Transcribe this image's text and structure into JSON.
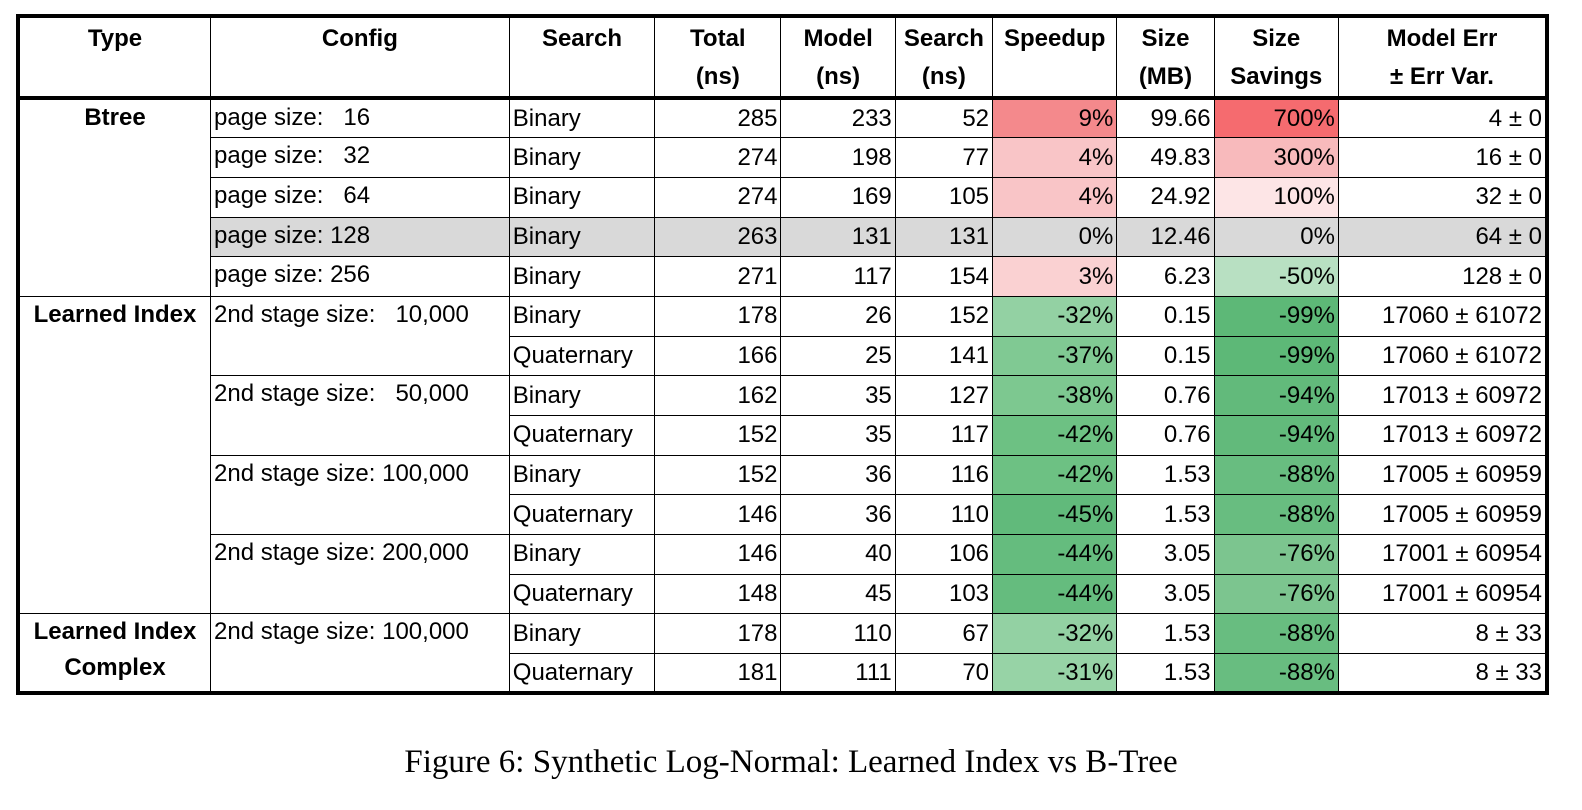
{
  "headers": {
    "type": [
      "Type"
    ],
    "config": [
      "Config"
    ],
    "search": [
      "Search"
    ],
    "total": [
      "Total",
      "(ns)"
    ],
    "model": [
      "Model",
      "(ns)"
    ],
    "search_ns": [
      "Search",
      "(ns)"
    ],
    "speedup": [
      "Speedup"
    ],
    "size": [
      "Size",
      "(MB)"
    ],
    "savings": [
      "Size",
      "Savings"
    ],
    "model_err": [
      "Model Err",
      "± Err Var."
    ]
  },
  "groups": [
    {
      "type": [
        "Btree"
      ],
      "configs": [
        {
          "label": "page size:   16",
          "rows": [
            {
              "search": "Binary",
              "total": "285",
              "model": "233",
              "search_ns": "52",
              "speedup": "9%",
              "speedup_color": "#f4898c",
              "size": "99.66",
              "savings": "700%",
              "savings_color": "#f56b6f",
              "err": "4 ± 0"
            }
          ]
        },
        {
          "label": "page size:   32",
          "rows": [
            {
              "search": "Binary",
              "total": "274",
              "model": "198",
              "search_ns": "77",
              "speedup": "4%",
              "speedup_color": "#f9c5c7",
              "size": "49.83",
              "savings": "300%",
              "savings_color": "#f8babc",
              "err": "16 ± 0"
            }
          ]
        },
        {
          "label": "page size:   64",
          "rows": [
            {
              "search": "Binary",
              "total": "274",
              "model": "169",
              "search_ns": "105",
              "speedup": "4%",
              "speedup_color": "#f9c5c7",
              "size": "24.92",
              "savings": "100%",
              "savings_color": "#fde5e6",
              "err": "32 ± 0"
            }
          ]
        },
        {
          "label": "page size: 128",
          "highlight": true,
          "rows": [
            {
              "search": "Binary",
              "total": "263",
              "model": "131",
              "search_ns": "131",
              "speedup": "0%",
              "speedup_color": "#d9d9d9",
              "size": "12.46",
              "savings": "0%",
              "savings_color": "#d9d9d9",
              "err": "64 ± 0"
            }
          ]
        },
        {
          "label": "page size: 256",
          "rows": [
            {
              "search": "Binary",
              "total": "271",
              "model": "117",
              "search_ns": "154",
              "speedup": "3%",
              "speedup_color": "#fad1d2",
              "size": "6.23",
              "savings": "-50%",
              "savings_color": "#b8e0c2",
              "err": "128 ± 0"
            }
          ]
        }
      ]
    },
    {
      "type": [
        "Learned Index"
      ],
      "configs": [
        {
          "label": "2nd stage size:   10,000",
          "rows": [
            {
              "search": "Binary",
              "total": "178",
              "model": "26",
              "search_ns": "152",
              "speedup": "-32%",
              "speedup_color": "#93d1a3",
              "size": "0.15",
              "savings": "-99%",
              "savings_color": "#5db877",
              "err": "17060 ± 61072"
            },
            {
              "search": "Quaternary",
              "total": "166",
              "model": "25",
              "search_ns": "141",
              "speedup": "-37%",
              "speedup_color": "#80c993",
              "size": "0.15",
              "savings": "-99%",
              "savings_color": "#5db877",
              "err": "17060 ± 61072"
            }
          ]
        },
        {
          "label": "2nd stage size:   50,000",
          "rows": [
            {
              "search": "Binary",
              "total": "162",
              "model": "35",
              "search_ns": "127",
              "speedup": "-38%",
              "speedup_color": "#7dc890",
              "size": "0.76",
              "savings": "-94%",
              "savings_color": "#62ba7b",
              "err": "17013 ± 60972"
            },
            {
              "search": "Quaternary",
              "total": "152",
              "model": "35",
              "search_ns": "117",
              "speedup": "-42%",
              "speedup_color": "#6dc183",
              "size": "0.76",
              "savings": "-94%",
              "savings_color": "#62ba7b",
              "err": "17013 ± 60972"
            }
          ]
        },
        {
          "label": "2nd stage size: 100,000",
          "rows": [
            {
              "search": "Binary",
              "total": "152",
              "model": "36",
              "search_ns": "116",
              "speedup": "-42%",
              "speedup_color": "#6dc183",
              "size": "1.53",
              "savings": "-88%",
              "savings_color": "#68bd80",
              "err": "17005 ± 60959"
            },
            {
              "search": "Quaternary",
              "total": "146",
              "model": "36",
              "search_ns": "110",
              "speedup": "-45%",
              "speedup_color": "#61ba7b",
              "size": "1.53",
              "savings": "-88%",
              "savings_color": "#68bd80",
              "err": "17005 ± 60959"
            }
          ]
        },
        {
          "label": "2nd stage size: 200,000",
          "rows": [
            {
              "search": "Binary",
              "total": "146",
              "model": "40",
              "search_ns": "106",
              "speedup": "-44%",
              "speedup_color": "#65bc7e",
              "size": "3.05",
              "savings": "-76%",
              "savings_color": "#7cc58f",
              "err": "17001 ± 60954"
            },
            {
              "search": "Quaternary",
              "total": "148",
              "model": "45",
              "search_ns": "103",
              "speedup": "-44%",
              "speedup_color": "#65bc7e",
              "size": "3.05",
              "savings": "-76%",
              "savings_color": "#7cc58f",
              "err": "17001 ± 60954"
            }
          ]
        }
      ]
    },
    {
      "type": [
        "Learned Index",
        "Complex"
      ],
      "configs": [
        {
          "label": "2nd stage size: 100,000",
          "rows": [
            {
              "search": "Binary",
              "total": "178",
              "model": "110",
              "search_ns": "67",
              "speedup": "-32%",
              "speedup_color": "#93d1a3",
              "size": "1.53",
              "savings": "-88%",
              "savings_color": "#68bd80",
              "err": "8 ± 33"
            },
            {
              "search": "Quaternary",
              "total": "181",
              "model": "111",
              "search_ns": "70",
              "speedup": "-31%",
              "speedup_color": "#97d3a6",
              "size": "1.53",
              "savings": "-88%",
              "savings_color": "#68bd80",
              "err": "8 ± 33"
            }
          ]
        }
      ]
    }
  ],
  "caption": "Figure 6: Synthetic Log-Normal: Learned Index vs B-Tree"
}
